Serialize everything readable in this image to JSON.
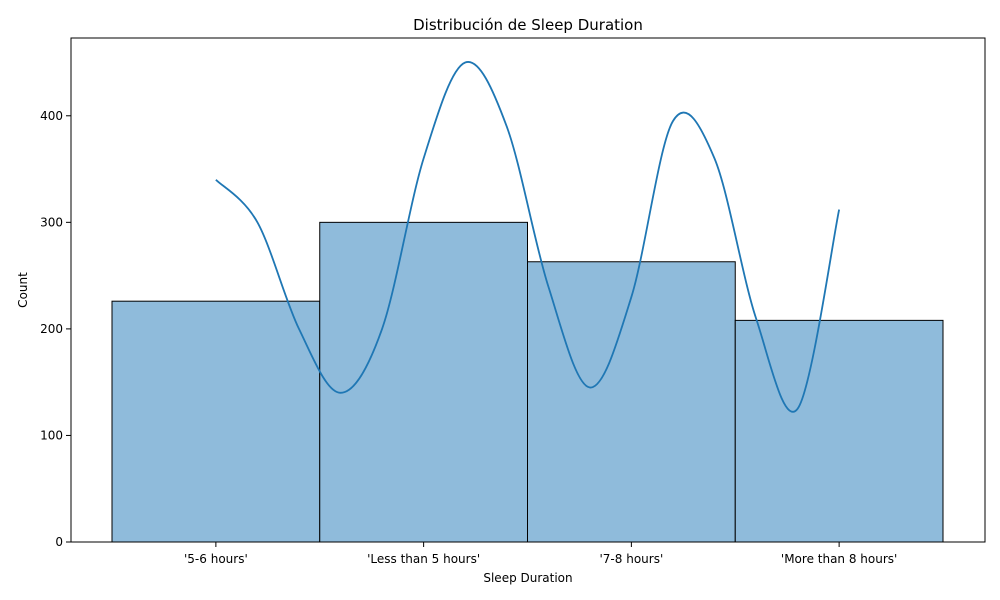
{
  "chart_data": {
    "type": "bar",
    "title": "Distribución de Sleep Duration",
    "xlabel": "Sleep Duration",
    "ylabel": "Count",
    "categories": [
      "'5-6 hours'",
      "'Less than 5 hours'",
      "'7-8 hours'",
      "'More than 8 hours'"
    ],
    "values": [
      226,
      300,
      263,
      208
    ],
    "ylim": [
      0,
      473
    ],
    "yticks": [
      0,
      100,
      200,
      300,
      400
    ],
    "kde": {
      "x": [
        0,
        0.2,
        0.4,
        0.6,
        0.8,
        1.0,
        1.2,
        1.4,
        1.6,
        1.8,
        2.0,
        2.2,
        2.4,
        2.6,
        2.8,
        3.0
      ],
      "y": [
        340,
        300,
        200,
        140,
        200,
        360,
        450,
        390,
        240,
        145,
        230,
        395,
        360,
        210,
        125,
        312
      ]
    },
    "grid": false,
    "colors": {
      "bar_fill": "#8fbbdb",
      "bar_edge": "#000000",
      "kde_line": "#1f77b4"
    }
  }
}
